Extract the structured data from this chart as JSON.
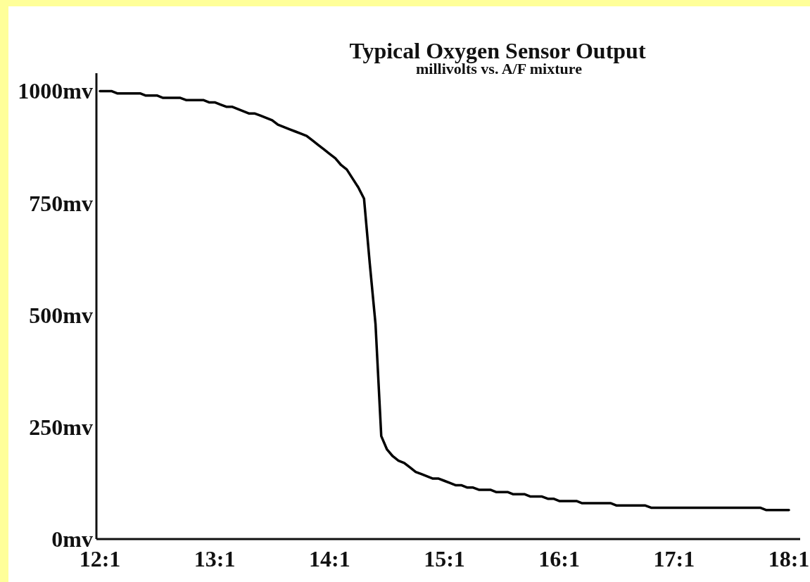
{
  "chart_data": {
    "type": "line",
    "title": "Typical Oxygen Sensor Output",
    "subtitle": "millivolts vs. A/F mixture",
    "categories": [
      "12:1",
      null,
      null,
      null,
      null,
      null,
      null,
      null,
      null,
      null,
      null,
      null,
      null,
      null,
      null,
      null,
      null,
      null,
      null,
      null,
      "13:1",
      null,
      null,
      null,
      null,
      null,
      null,
      null,
      null,
      null,
      null,
      null,
      null,
      null,
      null,
      null,
      null,
      null,
      null,
      null,
      "14:1",
      null,
      null,
      null,
      null,
      null,
      null,
      null,
      null,
      null,
      null,
      null,
      null,
      null,
      null,
      null,
      null,
      null,
      null,
      null,
      "15:1",
      null,
      null,
      null,
      null,
      null,
      null,
      null,
      null,
      null,
      null,
      null,
      null,
      null,
      null,
      null,
      null,
      null,
      null,
      null,
      "16:1",
      null,
      null,
      null,
      null,
      null,
      null,
      null,
      null,
      null,
      null,
      null,
      null,
      null,
      null,
      null,
      null,
      null,
      null,
      null,
      "17:1",
      null,
      null,
      null,
      null,
      null,
      null,
      null,
      null,
      null,
      null,
      null,
      null,
      null,
      null,
      null,
      null,
      null,
      null,
      null,
      "18:1"
    ],
    "series": [
      {
        "color": "#000000",
        "values": [
          1000,
          1000,
          1000,
          995,
          995,
          995,
          995,
          995,
          990,
          990,
          990,
          985,
          985,
          985,
          985,
          980,
          980,
          980,
          980,
          975,
          975,
          970,
          965,
          965,
          960,
          955,
          950,
          950,
          945,
          940,
          935,
          925,
          920,
          915,
          910,
          905,
          900,
          890,
          880,
          870,
          860,
          850,
          835,
          825,
          805,
          785,
          760,
          615,
          480,
          230,
          200,
          185,
          175,
          170,
          160,
          150,
          145,
          140,
          135,
          135,
          130,
          125,
          120,
          120,
          115,
          115,
          110,
          110,
          110,
          105,
          105,
          105,
          100,
          100,
          100,
          95,
          95,
          95,
          90,
          90,
          85,
          85,
          85,
          85,
          80,
          80,
          80,
          80,
          80,
          80,
          75,
          75,
          75,
          75,
          75,
          75,
          70,
          70,
          70,
          70,
          70,
          70,
          70,
          70,
          70,
          70,
          70,
          70,
          70,
          70,
          70,
          70,
          70,
          70,
          70,
          70,
          65,
          65,
          65,
          65,
          65
        ]
      }
    ],
    "ylim": [
      0,
      1040
    ],
    "yticks": [
      {
        "value": 0,
        "label": "0mv"
      },
      {
        "value": 250,
        "label": "250mv"
      },
      {
        "value": 500,
        "label": "500mv"
      },
      {
        "value": 750,
        "label": "750mv"
      },
      {
        "value": 1000,
        "label": "1000mv"
      }
    ]
  }
}
